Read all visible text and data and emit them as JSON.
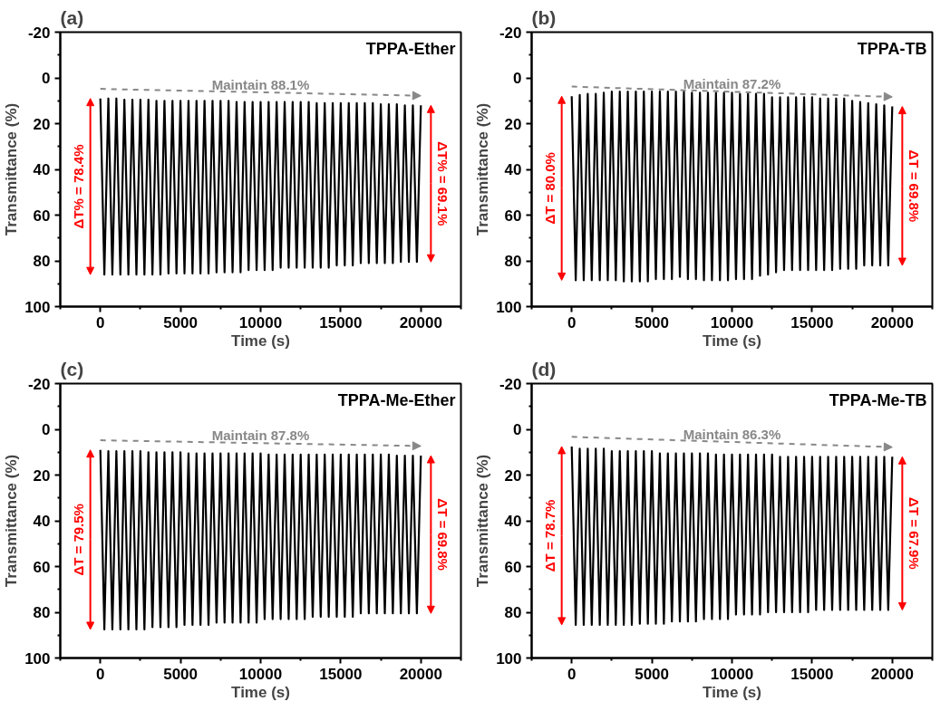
{
  "chart_data": [
    {
      "type": "line",
      "title": "(a)",
      "xlabel": "Time (s)",
      "ylabel": "Transmittance (%)",
      "xlim": [
        -2500,
        22500
      ],
      "ylim": [
        100,
        -20
      ],
      "xticks": [
        {
          "value": -2500,
          "label": null
        },
        0,
        {
          "value": 2500,
          "label": null
        },
        5000,
        {
          "value": 7500,
          "label": null
        },
        10000,
        {
          "value": 12500,
          "label": null
        },
        15000,
        {
          "value": 17500,
          "label": null
        },
        20000,
        {
          "value": 22500,
          "label": null
        }
      ],
      "yticks": [
        -20,
        {
          "value": -10,
          "label": null
        },
        0,
        {
          "value": 10,
          "label": null
        },
        20,
        {
          "value": 30,
          "label": null
        },
        40,
        {
          "value": 50,
          "label": null
        },
        60,
        {
          "value": 70,
          "label": null
        },
        80,
        {
          "value": 90,
          "label": null
        },
        100
      ],
      "x": [
        0,
        250,
        500,
        750,
        1000,
        1250,
        1500,
        1750,
        2000,
        2250,
        2500,
        2750,
        3000,
        3250,
        3500,
        3750,
        4000,
        4250,
        4500,
        4750,
        5000,
        5250,
        5500,
        5750,
        6000,
        6250,
        6500,
        6750,
        7000,
        7250,
        7500,
        7750,
        8000,
        8250,
        8500,
        8750,
        9000,
        9250,
        9500,
        9750,
        10000,
        10250,
        10500,
        10750,
        11000,
        11250,
        11500,
        11750,
        12000,
        12250,
        12500,
        12750,
        13000,
        13250,
        13500,
        13750,
        14000,
        14250,
        14500,
        14750,
        15000,
        15250,
        15500,
        15750,
        16000,
        16250,
        16500,
        16750,
        17000,
        17250,
        17500,
        17750,
        18000,
        18250,
        18500,
        18750,
        19000,
        19250,
        19500,
        19750,
        20000
      ],
      "series": [
        {
          "name": "TPPA-Ether",
          "color": "#000000",
          "values": [
            9,
            86,
            9,
            86,
            9,
            86,
            9.5,
            86,
            9.5,
            86,
            9.5,
            86,
            9.5,
            86,
            10,
            86,
            10,
            85.5,
            10,
            85.5,
            10,
            85.5,
            10,
            85.5,
            10,
            85.5,
            10,
            85.5,
            10,
            85,
            10,
            85,
            10,
            85,
            10.5,
            85,
            10.5,
            84,
            10.5,
            84,
            10.5,
            84,
            10.5,
            84,
            10.5,
            83,
            10.5,
            83,
            10.5,
            83,
            10.5,
            83,
            10.5,
            83,
            11,
            83,
            11,
            83,
            11,
            82,
            11,
            82,
            11,
            82,
            11,
            81,
            11,
            81,
            11,
            81,
            11.5,
            81,
            11.5,
            81,
            11.5,
            80.5,
            12,
            80.5,
            12,
            80.5,
            12
          ]
        }
      ],
      "annotations": [
        "Maintain 88.1%",
        "ΔT% = 78.4%",
        "ΔT% = 69.1%"
      ],
      "legend": false,
      "grid": false,
      "marker": "none",
      "line_style": "solid"
    },
    {
      "type": "line",
      "title": "(b)",
      "xlabel": "Time (s)",
      "ylabel": "Transmittance (%)",
      "xlim": [
        -2500,
        22500
      ],
      "ylim": [
        100,
        -20
      ],
      "xticks": [
        {
          "value": -2500,
          "label": null
        },
        0,
        {
          "value": 2500,
          "label": null
        },
        5000,
        {
          "value": 7500,
          "label": null
        },
        10000,
        {
          "value": 12500,
          "label": null
        },
        15000,
        {
          "value": 17500,
          "label": null
        },
        20000,
        {
          "value": 22500,
          "label": null
        }
      ],
      "yticks": [
        -20,
        {
          "value": -10,
          "label": null
        },
        0,
        {
          "value": 10,
          "label": null
        },
        20,
        {
          "value": 30,
          "label": null
        },
        40,
        {
          "value": 50,
          "label": null
        },
        60,
        {
          "value": 70,
          "label": null
        },
        80,
        {
          "value": 90,
          "label": null
        },
        100
      ],
      "x": [
        0,
        250,
        500,
        750,
        1000,
        1250,
        1500,
        1750,
        2000,
        2250,
        2500,
        2750,
        3000,
        3250,
        3500,
        3750,
        4000,
        4250,
        4500,
        4750,
        5000,
        5250,
        5500,
        5750,
        6000,
        6250,
        6500,
        6750,
        7000,
        7250,
        7500,
        7750,
        8000,
        8250,
        8500,
        8750,
        9000,
        9250,
        9500,
        9750,
        10000,
        10250,
        10500,
        10750,
        11000,
        11250,
        11500,
        11750,
        12000,
        12250,
        12500,
        12750,
        13000,
        13250,
        13500,
        13750,
        14000,
        14250,
        14500,
        14750,
        15000,
        15250,
        15500,
        15750,
        16000,
        16250,
        16500,
        16750,
        17000,
        17250,
        17500,
        17750,
        18000,
        18250,
        18500,
        18750,
        19000,
        19250,
        19500,
        19750,
        20000
      ],
      "series": [
        {
          "name": "TPPA-TB",
          "color": "#000000",
          "values": [
            8,
            88.5,
            7.5,
            88.5,
            7,
            88.5,
            7,
            88.5,
            6.5,
            88.5,
            6,
            88.5,
            6,
            89,
            6,
            89,
            6,
            89,
            6,
            89,
            6,
            88,
            6,
            88,
            6,
            88,
            6,
            87,
            6,
            88,
            6.5,
            88,
            6.5,
            88.5,
            6.5,
            88.5,
            6.5,
            88.5,
            6.5,
            88.5,
            6.5,
            88,
            7,
            88,
            7,
            88,
            7,
            86.5,
            7,
            86,
            8.5,
            85,
            8.5,
            84,
            8.5,
            84,
            8.5,
            84,
            8.5,
            84,
            8.5,
            84,
            9,
            84,
            9,
            84,
            9,
            83.5,
            9,
            83.5,
            10,
            83.5,
            10.5,
            82,
            11,
            82,
            11.5,
            82,
            12,
            82,
            12.5
          ]
        }
      ],
      "annotations": [
        "Maintain 87.2%",
        "ΔT = 80.0%",
        "ΔT = 69.8%"
      ],
      "legend": false,
      "grid": false,
      "marker": "none",
      "line_style": "solid"
    },
    {
      "type": "line",
      "title": "(c)",
      "xlabel": "Time (s)",
      "ylabel": "Transmittance (%)",
      "xlim": [
        -2500,
        22500
      ],
      "ylim": [
        100,
        -20
      ],
      "xticks": [
        {
          "value": -2500,
          "label": null
        },
        0,
        {
          "value": 2500,
          "label": null
        },
        5000,
        {
          "value": 7500,
          "label": null
        },
        10000,
        {
          "value": 12500,
          "label": null
        },
        15000,
        {
          "value": 17500,
          "label": null
        },
        20000,
        {
          "value": 22500,
          "label": null
        }
      ],
      "yticks": [
        -20,
        {
          "value": -10,
          "label": null
        },
        0,
        {
          "value": 10,
          "label": null
        },
        20,
        {
          "value": 30,
          "label": null
        },
        40,
        {
          "value": 50,
          "label": null
        },
        60,
        {
          "value": 70,
          "label": null
        },
        80,
        {
          "value": 90,
          "label": null
        },
        100
      ],
      "x": [
        0,
        250,
        500,
        750,
        1000,
        1250,
        1500,
        1750,
        2000,
        2250,
        2500,
        2750,
        3000,
        3250,
        3500,
        3750,
        4000,
        4250,
        4500,
        4750,
        5000,
        5250,
        5500,
        5750,
        6000,
        6250,
        6500,
        6750,
        7000,
        7250,
        7500,
        7750,
        8000,
        8250,
        8500,
        8750,
        9000,
        9250,
        9500,
        9750,
        10000,
        10250,
        10500,
        10750,
        11000,
        11250,
        11500,
        11750,
        12000,
        12250,
        12500,
        12750,
        13000,
        13250,
        13500,
        13750,
        14000,
        14250,
        14500,
        14750,
        15000,
        15250,
        15500,
        15750,
        16000,
        16250,
        16500,
        16750,
        17000,
        17250,
        17500,
        17750,
        18000,
        18250,
        18500,
        18750,
        19000,
        19250,
        19500,
        19750,
        20000
      ],
      "series": [
        {
          "name": "TPPA-Me-Ether",
          "color": "#000000",
          "values": [
            9,
            87.5,
            9.5,
            87.5,
            9.5,
            87.5,
            9.5,
            87.5,
            9.5,
            87.5,
            9.5,
            87.5,
            10,
            86.5,
            10,
            86.5,
            10,
            86.5,
            10,
            86.5,
            10,
            85.5,
            10.5,
            85.5,
            10.5,
            85.5,
            10.5,
            85.5,
            10.5,
            84.5,
            10.5,
            84.5,
            10.5,
            84.5,
            10.5,
            84.5,
            10.5,
            84.5,
            10.5,
            84.5,
            10.5,
            83,
            11,
            83,
            11,
            83,
            11,
            83,
            11,
            83,
            11,
            83,
            11,
            82,
            11,
            82,
            11,
            82,
            11,
            82,
            11,
            82,
            11,
            82,
            11,
            80.5,
            11,
            80.5,
            11,
            80.5,
            11,
            80.5,
            11,
            80.5,
            11.5,
            80.5,
            11.5,
            80.5,
            11.5,
            80.5,
            11.5
          ]
        }
      ],
      "annotations": [
        "Maintain 87.8%",
        "ΔT = 79.5%",
        "ΔT = 69.8%"
      ],
      "legend": false,
      "grid": false,
      "marker": "none",
      "line_style": "solid"
    },
    {
      "type": "line",
      "title": "(d)",
      "xlabel": "Time (s)",
      "ylabel": "Transmittance (%)",
      "xlim": [
        -2500,
        22500
      ],
      "ylim": [
        100,
        -20
      ],
      "xticks": [
        {
          "value": -2500,
          "label": null
        },
        0,
        {
          "value": 2500,
          "label": null
        },
        5000,
        {
          "value": 7500,
          "label": null
        },
        10000,
        {
          "value": 12500,
          "label": null
        },
        15000,
        {
          "value": 17500,
          "label": null
        },
        20000,
        {
          "value": 22500,
          "label": null
        }
      ],
      "yticks": [
        -20,
        {
          "value": -10,
          "label": null
        },
        0,
        {
          "value": 10,
          "label": null
        },
        20,
        {
          "value": 30,
          "label": null
        },
        40,
        {
          "value": 50,
          "label": null
        },
        60,
        {
          "value": 70,
          "label": null
        },
        80,
        {
          "value": 90,
          "label": null
        },
        100
      ],
      "x": [
        0,
        250,
        500,
        750,
        1000,
        1250,
        1500,
        1750,
        2000,
        2250,
        2500,
        2750,
        3000,
        3250,
        3500,
        3750,
        4000,
        4250,
        4500,
        4750,
        5000,
        5250,
        5500,
        5750,
        6000,
        6250,
        6500,
        6750,
        7000,
        7250,
        7500,
        7750,
        8000,
        8250,
        8500,
        8750,
        9000,
        9250,
        9500,
        9750,
        10000,
        10250,
        10500,
        10750,
        11000,
        11250,
        11500,
        11750,
        12000,
        12250,
        12500,
        12750,
        13000,
        13250,
        13500,
        13750,
        14000,
        14250,
        14500,
        14750,
        15000,
        15250,
        15500,
        15750,
        16000,
        16250,
        16500,
        16750,
        17000,
        17250,
        17500,
        17750,
        18000,
        18250,
        18500,
        18750,
        19000,
        19250,
        19500,
        19750,
        20000
      ],
      "series": [
        {
          "name": "TPPA-Me-TB",
          "color": "#000000",
          "values": [
            7.5,
            85.5,
            8.5,
            85.5,
            8.5,
            85.5,
            8.5,
            85.5,
            8.5,
            85.5,
            9.5,
            85.5,
            9.5,
            85.5,
            9.5,
            85.5,
            9.5,
            85,
            9.5,
            85,
            9.5,
            85,
            10.5,
            85,
            10.5,
            84,
            10.5,
            84,
            10.5,
            84,
            10.5,
            84,
            10.5,
            83,
            10.5,
            83,
            11,
            83,
            11,
            83,
            11,
            81,
            11,
            81,
            11,
            81,
            11,
            81,
            11,
            80,
            11,
            80,
            12,
            80,
            12,
            80,
            12,
            80,
            12,
            80,
            12,
            79,
            12,
            79,
            12,
            79,
            12,
            79,
            12,
            79,
            12,
            79,
            12,
            79,
            12,
            79,
            12,
            79,
            12,
            79,
            12
          ]
        }
      ],
      "annotations": [
        "Maintain 86.3%",
        "ΔT = 78.7%",
        "ΔT = 67.9%"
      ],
      "legend": false,
      "grid": false,
      "marker": "none",
      "line_style": "solid"
    }
  ]
}
